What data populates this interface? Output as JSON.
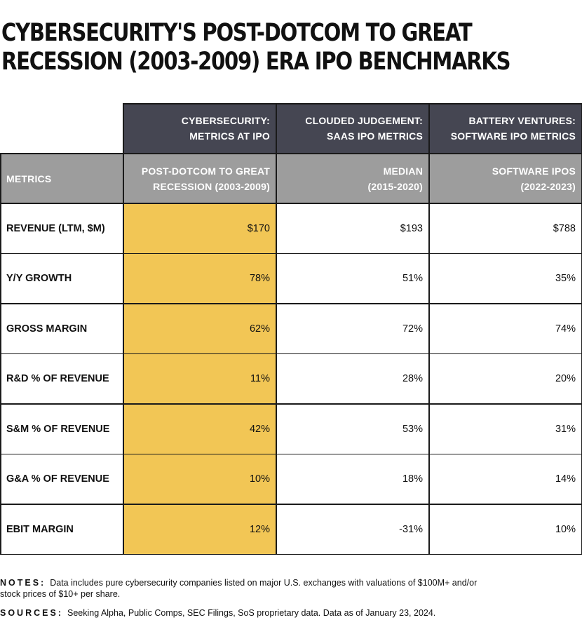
{
  "title_lines": [
    "CYBERSECURITY'S POST-DOTCOM TO GREAT",
    "RECESSION (2003-2009) ERA IPO BENCHMARKS"
  ],
  "colors": {
    "header_dark": "#454652",
    "header_grey": "#9d9d9d",
    "highlight": "#f2c655",
    "border": "#1a1a1a"
  },
  "chart_data": {
    "type": "table",
    "group_headers": [
      [
        "CYBERSECURITY:",
        "METRICS AT IPO"
      ],
      [
        "CLOUDED JUDGEMENT:",
        "SAAS IPO METRICS"
      ],
      [
        "BATTERY VENTURES:",
        "SOFTWARE IPO METRICS"
      ]
    ],
    "metrics_header": "METRICS",
    "column_headers": [
      [
        "POST-DOTCOM TO GREAT",
        "RECESSION (2003-2009)"
      ],
      [
        "MEDIAN",
        "(2015-2020)"
      ],
      [
        "SOFTWARE IPOS",
        "(2022-2023)"
      ]
    ],
    "rows": [
      {
        "metric": "REVENUE (LTM, $M)",
        "values": [
          "$170",
          "$193",
          "$788"
        ]
      },
      {
        "metric": "Y/Y GROWTH",
        "values": [
          "78%",
          "51%",
          "35%"
        ]
      },
      {
        "metric": "GROSS MARGIN",
        "values": [
          "62%",
          "72%",
          "74%"
        ]
      },
      {
        "metric": "R&D % OF REVENUE",
        "values": [
          "11%",
          "28%",
          "20%"
        ]
      },
      {
        "metric": "S&M % OF REVENUE",
        "values": [
          "42%",
          "53%",
          "31%"
        ]
      },
      {
        "metric": "G&A % OF REVENUE",
        "values": [
          "10%",
          "18%",
          "14%"
        ]
      },
      {
        "metric": "EBIT MARGIN",
        "values": [
          "12%",
          "-31%",
          "10%"
        ]
      }
    ],
    "highlighted_column": 0
  },
  "notes": {
    "label": "NOTES:",
    "text": "Data includes pure cybersecurity companies listed on major U.S. exchanges with valuations of $100M+ and/or stock prices of $10+ per share."
  },
  "sources": {
    "label": "SOURCES:",
    "text": "Seeking Alpha, Public Comps, SEC Filings, SoS proprietary data. Data as of January 23, 2024."
  }
}
